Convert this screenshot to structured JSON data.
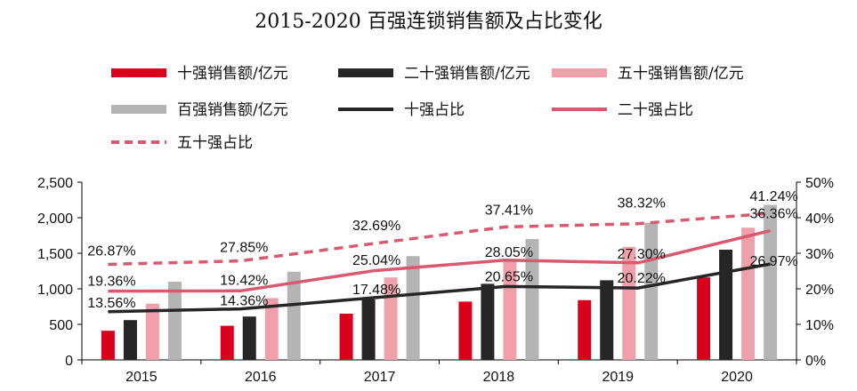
{
  "chart_data": {
    "type": "bar",
    "title": "2015-2020 百强连锁销售额及占比变化",
    "categories": [
      "2015",
      "2016",
      "2017",
      "2018",
      "2019",
      "2020"
    ],
    "ylim": [
      0,
      2500
    ],
    "yticks": [
      "0",
      "500",
      "1,000",
      "1,500",
      "2,000",
      "2,500"
    ],
    "y2lim": [
      0,
      50
    ],
    "y2ticks": [
      "0%",
      "10%",
      "20%",
      "30%",
      "40%",
      "50%"
    ],
    "bar_series": [
      {
        "name": "十强销售额/亿元",
        "color": "#d9001b",
        "values": [
          410,
          480,
          650,
          820,
          840,
          1160
        ]
      },
      {
        "name": "二十强销售额/亿元",
        "color": "#262626",
        "values": [
          560,
          610,
          850,
          1070,
          1120,
          1550
        ]
      },
      {
        "name": "五十强销售额/亿元",
        "color": "#f0a0a8",
        "values": [
          790,
          870,
          1160,
          1380,
          1590,
          1860
        ]
      },
      {
        "name": "百强销售额/亿元",
        "color": "#b4b4b4",
        "values": [
          1100,
          1240,
          1460,
          1700,
          1930,
          2180
        ]
      }
    ],
    "line_series": [
      {
        "name": "十强占比",
        "color": "#262626",
        "style": "solid",
        "values": [
          13.56,
          14.36,
          17.48,
          20.65,
          20.22,
          26.97
        ],
        "labels": [
          "13.56%",
          "14.36%",
          "17.48%",
          "20.65%",
          "20.22%",
          "26.97%"
        ]
      },
      {
        "name": "二十强占比",
        "color": "#d9596e",
        "style": "solid",
        "values": [
          19.36,
          19.42,
          25.04,
          28.05,
          27.3,
          36.36
        ],
        "labels": [
          "19.36%",
          "19.42%",
          "25.04%",
          "28.05%",
          "27.30%",
          "36.36%"
        ]
      },
      {
        "name": "五十强占比",
        "color": "#d9596e",
        "style": "dashed",
        "values": [
          26.87,
          27.85,
          32.69,
          37.41,
          38.32,
          41.24
        ],
        "labels": [
          "26.87%",
          "27.85%",
          "32.69%",
          "37.41%",
          "38.32%",
          "41.24%"
        ]
      }
    ],
    "legend": [
      {
        "name": "十强销售额/亿元",
        "kind": "bar",
        "color": "#d9001b"
      },
      {
        "name": "二十强销售额/亿元",
        "kind": "bar",
        "color": "#262626"
      },
      {
        "name": "五十强销售额/亿元",
        "kind": "bar",
        "color": "#f0a0a8"
      },
      {
        "name": "百强销售额/亿元",
        "kind": "bar",
        "color": "#b4b4b4"
      },
      {
        "name": "十强占比",
        "kind": "line",
        "color": "#262626"
      },
      {
        "name": "二十强占比",
        "kind": "line",
        "color": "#d9596e"
      },
      {
        "name": "五十强占比",
        "kind": "dash",
        "color": "#d9596e"
      }
    ],
    "legend_position": "top"
  }
}
